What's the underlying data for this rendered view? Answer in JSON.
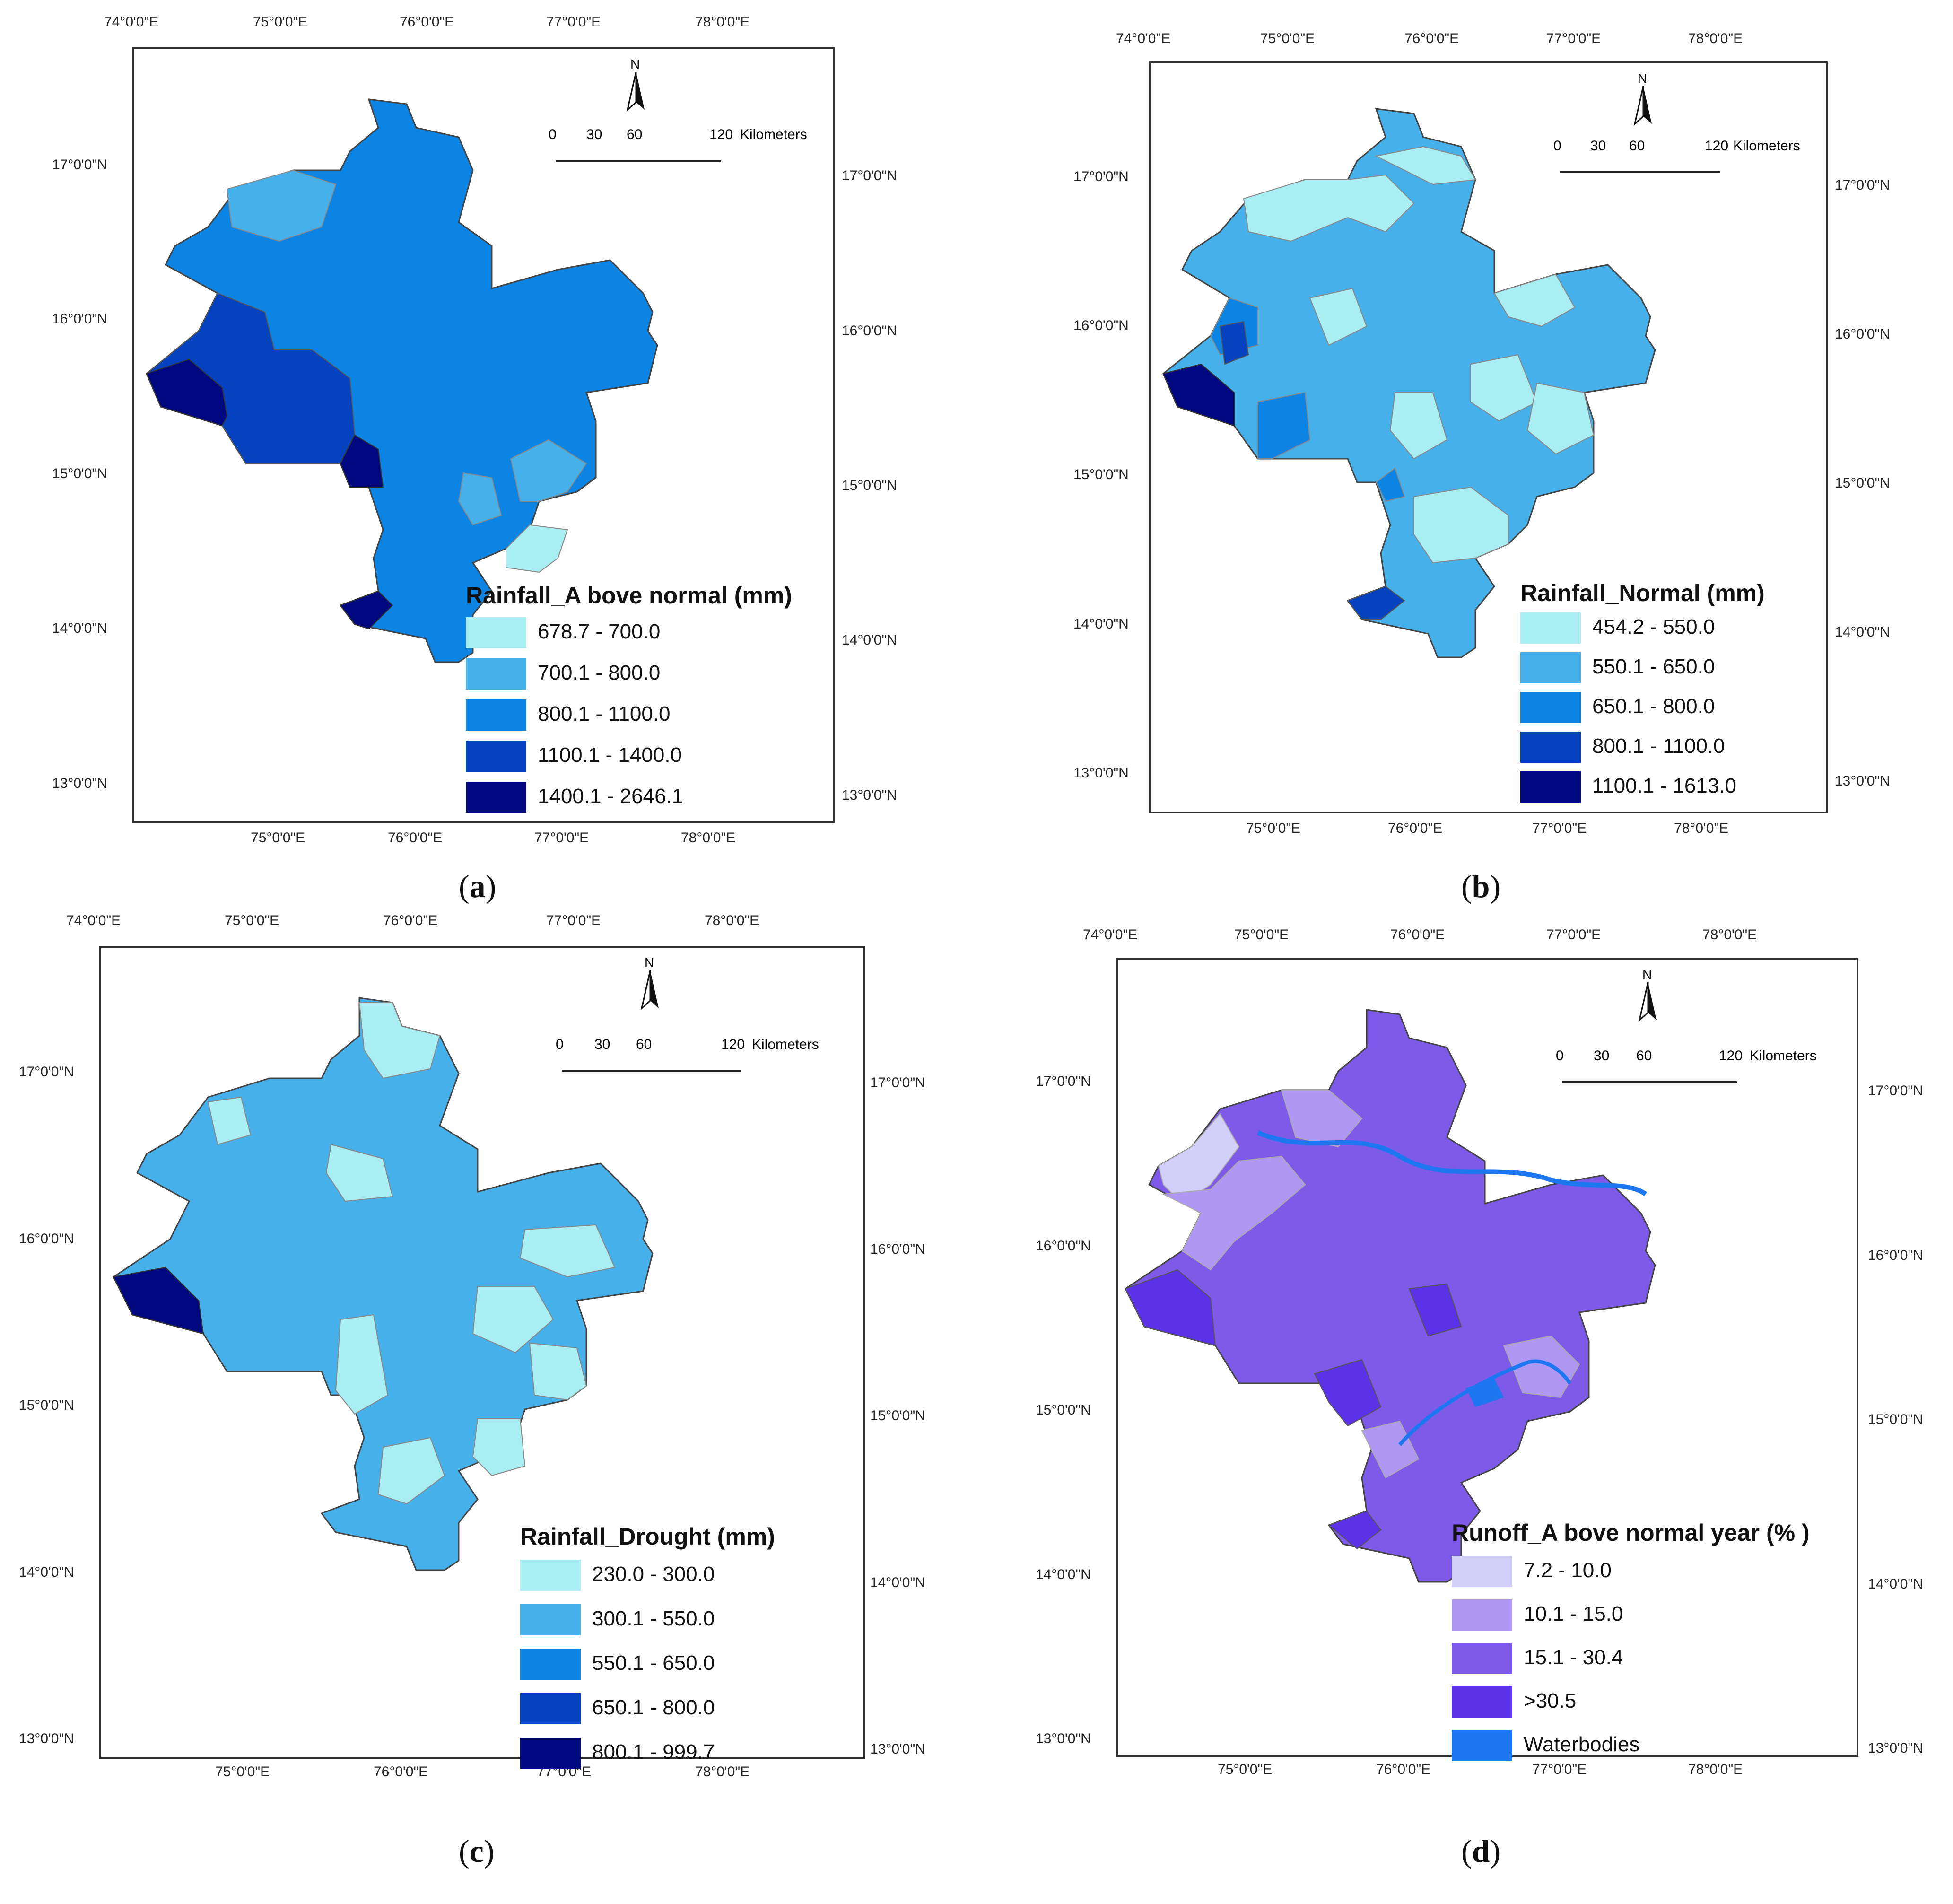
{
  "figure": {
    "lon_labels": [
      "74°0'0\"E",
      "75°0'0\"E",
      "76°0'0\"E",
      "77°0'0\"E",
      "78°0'0\"E"
    ],
    "lon_labels_bottom": [
      "75°0'0\"E",
      "76°0'0\"E",
      "77°0'0\"E",
      "78°0'0\"E"
    ],
    "lat_labels": [
      "17°0'0\"N",
      "16°0'0\"N",
      "15°0'0\"N",
      "14°0'0\"N",
      "13°0'0\"N"
    ],
    "north_label": "N",
    "scale": {
      "ticks": [
        "0",
        "30",
        "60",
        "120"
      ],
      "unit": "Kilometers"
    }
  },
  "panels": [
    {
      "id": "a",
      "label": "a",
      "legend_title": "Rainfall_A bove normal (mm)",
      "classes": [
        {
          "label": "678.7 - 700.0",
          "color": "#a8eef3"
        },
        {
          "label": "700.1 - 800.0",
          "color": "#45b0ea"
        },
        {
          "label": "800.1 - 1100.0",
          "color": "#0c84e4"
        },
        {
          "label": "1100.1 - 1400.0",
          "color": "#0442c0"
        },
        {
          "label": "1400.1 - 2646.1",
          "color": "#00087f"
        }
      ]
    },
    {
      "id": "b",
      "label": "b",
      "legend_title": "Rainfall_Normal (mm)",
      "classes": [
        {
          "label": "454.2 - 550.0",
          "color": "#a8eef3"
        },
        {
          "label": "550.1 - 650.0",
          "color": "#45b0ea"
        },
        {
          "label": "650.1 - 800.0",
          "color": "#0c84e4"
        },
        {
          "label": "800.1 - 1100.0",
          "color": "#0442c0"
        },
        {
          "label": "1100.1 - 1613.0",
          "color": "#00087f"
        }
      ]
    },
    {
      "id": "c",
      "label": "c",
      "legend_title": "Rainfall_Drought (mm)",
      "classes": [
        {
          "label": "230.0 - 300.0",
          "color": "#a8eef3"
        },
        {
          "label": "300.1 - 550.0",
          "color": "#45b0ea"
        },
        {
          "label": "550.1 - 650.0",
          "color": "#0c84e4"
        },
        {
          "label": "650.1 - 800.0",
          "color": "#0442c0"
        },
        {
          "label": "800.1 - 999.7",
          "color": "#00087f"
        }
      ]
    },
    {
      "id": "d",
      "label": "d",
      "legend_title": "Runoff_A bove normal year (% )",
      "classes": [
        {
          "label": "7.2 - 10.0",
          "color": "#d3cffb"
        },
        {
          "label": "10.1 - 15.0",
          "color": "#ae98f3"
        },
        {
          "label": "15.1 - 30.4",
          "color": "#7e5ae8"
        },
        {
          "label": ">30.5",
          "color": "#5a33e8"
        },
        {
          "label": "Waterbodies",
          "color": "#1d77f0"
        }
      ]
    }
  ]
}
